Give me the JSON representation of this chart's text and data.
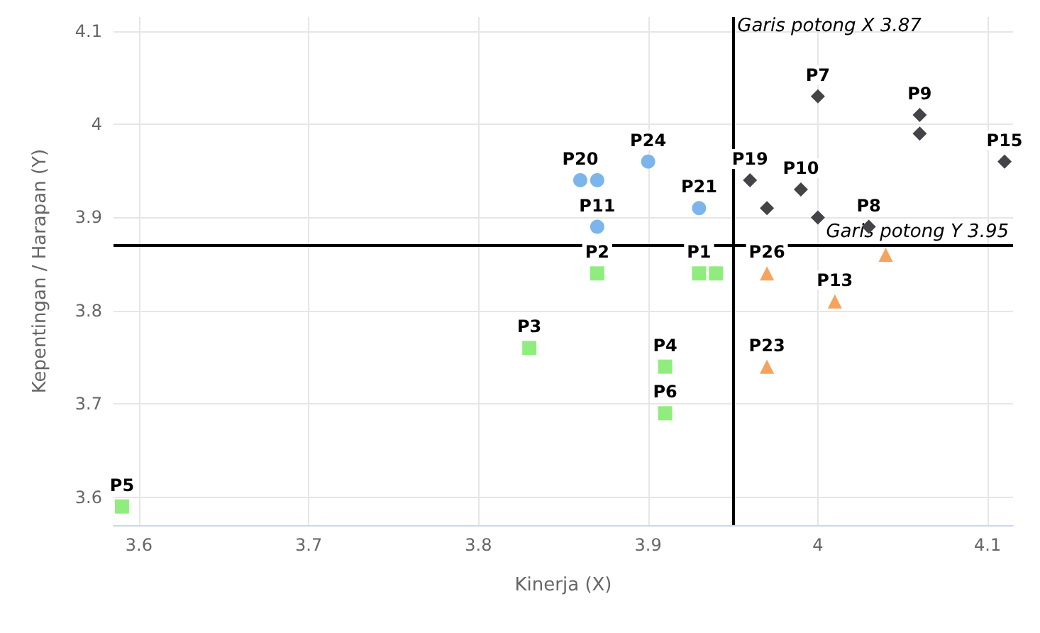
{
  "chart_data": {
    "type": "scatter",
    "xlabel": "Kinerja (X)",
    "ylabel": "Kepentingan / Harapan (Y)",
    "xlim": [
      3.585,
      4.115
    ],
    "ylim": [
      3.57,
      4.115
    ],
    "xticks": [
      3.6,
      3.7,
      3.8,
      3.9,
      4,
      4.1
    ],
    "yticks": [
      3.6,
      3.7,
      3.8,
      3.9,
      4,
      4.1
    ],
    "grid": true,
    "series": [
      {
        "color": "#7cb5ec",
        "marker": "circle",
        "x": [
          3.86,
          3.87,
          3.87,
          3.9,
          3.93
        ],
        "values": [
          3.94,
          3.94,
          3.89,
          3.96,
          3.91
        ],
        "value_labels": [
          "P20",
          null,
          "P11",
          "P24",
          "P21"
        ]
      },
      {
        "color": "#434348",
        "marker": "diamond",
        "x": [
          4.0,
          4.06,
          4.06,
          4.11,
          3.96,
          3.97,
          3.99,
          4.0,
          4.03
        ],
        "values": [
          4.03,
          4.01,
          3.99,
          3.96,
          3.94,
          3.91,
          3.93,
          3.9,
          3.89
        ],
        "value_labels": [
          "P7",
          "P9",
          null,
          "P15",
          "P19",
          null,
          "P10",
          null,
          "P8"
        ]
      },
      {
        "color": "#f7a35c",
        "marker": "triangle",
        "x": [
          3.97,
          4.04,
          4.01,
          3.97
        ],
        "values": [
          3.84,
          3.86,
          3.81,
          3.74
        ],
        "value_labels": [
          "P26",
          null,
          "P13",
          "P23"
        ]
      },
      {
        "color": "#90ed7d",
        "marker": "square",
        "x": [
          3.87,
          3.93,
          3.94,
          3.83,
          3.91,
          3.91,
          3.59
        ],
        "values": [
          3.84,
          3.84,
          3.84,
          3.76,
          3.74,
          3.69,
          3.59
        ],
        "value_labels": [
          "P2",
          "P1",
          null,
          "P3",
          "P4",
          "P6",
          "P5"
        ]
      }
    ],
    "ref_lines": [
      {
        "axis": "x",
        "value": 3.95,
        "label": "Garis potong X 3.87",
        "color": "#000000"
      },
      {
        "axis": "y",
        "value": 3.87,
        "label": "Garis potong Y 3.95",
        "color": "#000000"
      }
    ]
  }
}
